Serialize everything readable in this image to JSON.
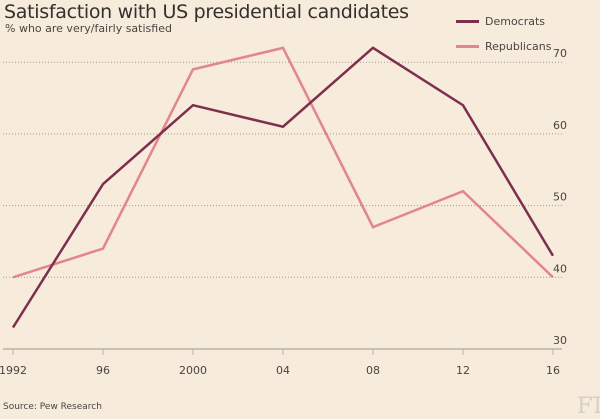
{
  "chart_data": {
    "type": "line",
    "title": "Satisfaction with US presidential candidates",
    "subtitle": "% who are very/fairly satisfied",
    "xlabel": "",
    "ylabel": "",
    "x": [
      "1992",
      "96",
      "2000",
      "04",
      "08",
      "12",
      "16"
    ],
    "x_values": [
      1992,
      1996,
      2000,
      2004,
      2008,
      2012,
      2016
    ],
    "ylim": [
      30,
      75
    ],
    "yticks": [
      30,
      40,
      50,
      60,
      70
    ],
    "ytick_labels": [
      "30",
      "40",
      "50",
      "60",
      "70"
    ],
    "grid": "horizontal-dotted",
    "legend_position": "top-right",
    "series": [
      {
        "name": "Democrats",
        "color": "#7d2f4c",
        "values": [
          33,
          53,
          64,
          61,
          72,
          64,
          43
        ]
      },
      {
        "name": "Republicans",
        "color": "#e3868c",
        "values": [
          40,
          44,
          69,
          72,
          47,
          52,
          40
        ]
      }
    ],
    "source": "Source: Pew Research",
    "logo": "FT"
  }
}
